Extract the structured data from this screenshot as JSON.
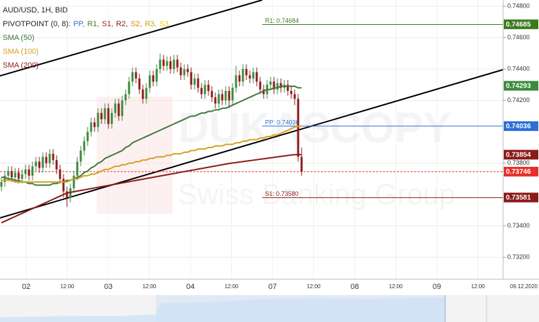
{
  "chart_data": {
    "type": "candlestick",
    "title": "AUD/USD, 1H, BID",
    "pivot_legend": {
      "name": "PIVOTPOINT (0, 8):",
      "items": [
        {
          "text": "PP,",
          "color": "#2a6fd6"
        },
        {
          "text": "R1,",
          "color": "#3c7a1e"
        },
        {
          "text": "S1,",
          "color": "#b22222"
        },
        {
          "text": "R2,",
          "color": "#8b1a1a"
        },
        {
          "text": "S2,",
          "color": "#e08a00"
        },
        {
          "text": "R3,",
          "color": "#c9a400"
        },
        {
          "text": "S3",
          "color": "#e6d200"
        }
      ]
    },
    "watermark": [
      "DUKASCOPY",
      "Swiss Banking Group"
    ],
    "candles": {
      "up_color": "#3c8a3c",
      "down_color": "#8b1a1a",
      "open": [
        0.7365,
        0.7368,
        0.7372,
        0.7375,
        0.7371,
        0.7374,
        0.737,
        0.7373,
        0.7376,
        0.7372,
        0.7378,
        0.7381,
        0.7377,
        0.7384,
        0.738,
        0.7386,
        0.7382,
        0.7376,
        0.737,
        0.7362,
        0.7358,
        0.7364,
        0.7372,
        0.7381,
        0.7388,
        0.7394,
        0.74,
        0.7406,
        0.7403,
        0.7412,
        0.7408,
        0.7415,
        0.7405,
        0.7412,
        0.7418,
        0.741,
        0.742,
        0.7424,
        0.7432,
        0.7438,
        0.7434,
        0.7427,
        0.7421,
        0.7428,
        0.7436,
        0.7432,
        0.744,
        0.7446,
        0.7442,
        0.7445,
        0.744,
        0.7446,
        0.7441,
        0.7436,
        0.744,
        0.7438,
        0.743,
        0.7434,
        0.7428,
        0.7424,
        0.743,
        0.7426,
        0.7422,
        0.7418,
        0.7424,
        0.742,
        0.7426,
        0.742,
        0.7428,
        0.7436,
        0.7432,
        0.744,
        0.7436,
        0.7434,
        0.7438,
        0.7432,
        0.7427,
        0.7424,
        0.743,
        0.7432,
        0.7427,
        0.7431,
        0.7428,
        0.743,
        0.7426,
        0.7424,
        0.7421,
        0.7384
      ],
      "high": [
        0.7371,
        0.7375,
        0.7378,
        0.7378,
        0.7377,
        0.7377,
        0.7376,
        0.7379,
        0.7379,
        0.7381,
        0.7384,
        0.7384,
        0.7387,
        0.7387,
        0.7389,
        0.7389,
        0.7385,
        0.7379,
        0.7373,
        0.7365,
        0.7367,
        0.7375,
        0.7384,
        0.7391,
        0.7397,
        0.7403,
        0.7409,
        0.7409,
        0.7415,
        0.7415,
        0.7418,
        0.7418,
        0.7415,
        0.7421,
        0.7421,
        0.7423,
        0.7427,
        0.7435,
        0.7441,
        0.7441,
        0.7437,
        0.743,
        0.7431,
        0.7439,
        0.7439,
        0.7443,
        0.745,
        0.7449,
        0.7448,
        0.7448,
        0.7449,
        0.7449,
        0.7444,
        0.7443,
        0.7443,
        0.7441,
        0.7437,
        0.7437,
        0.7431,
        0.7433,
        0.7433,
        0.7429,
        0.7425,
        0.7427,
        0.7427,
        0.7429,
        0.7429,
        0.7431,
        0.7442,
        0.7439,
        0.7443,
        0.7443,
        0.7439,
        0.7441,
        0.7441,
        0.7435,
        0.743,
        0.7433,
        0.7435,
        0.7435,
        0.7434,
        0.7434,
        0.7433,
        0.7433,
        0.7429,
        0.7427,
        0.7424,
        0.739
      ],
      "low": [
        0.7362,
        0.7365,
        0.7369,
        0.7368,
        0.7368,
        0.7367,
        0.7367,
        0.737,
        0.7369,
        0.7369,
        0.7375,
        0.7374,
        0.7374,
        0.7377,
        0.7377,
        0.7379,
        0.7373,
        0.7367,
        0.7358,
        0.7352,
        0.7355,
        0.7361,
        0.7369,
        0.7378,
        0.7385,
        0.7391,
        0.7397,
        0.74,
        0.74,
        0.7405,
        0.7405,
        0.7402,
        0.7402,
        0.7409,
        0.7407,
        0.7407,
        0.7417,
        0.7421,
        0.7429,
        0.7431,
        0.7424,
        0.7418,
        0.7418,
        0.7425,
        0.7429,
        0.7429,
        0.7437,
        0.7439,
        0.7439,
        0.7437,
        0.7437,
        0.7438,
        0.7433,
        0.7433,
        0.7435,
        0.7427,
        0.7427,
        0.7425,
        0.7421,
        0.7421,
        0.7423,
        0.7419,
        0.7415,
        0.7415,
        0.7417,
        0.7417,
        0.7415,
        0.7417,
        0.7425,
        0.7429,
        0.7429,
        0.7433,
        0.7431,
        0.7431,
        0.7429,
        0.7424,
        0.7421,
        0.7421,
        0.7427,
        0.7424,
        0.7424,
        0.7425,
        0.7425,
        0.7423,
        0.7421,
        0.7417,
        0.7381,
        0.7372
      ],
      "close": [
        0.7368,
        0.7372,
        0.7375,
        0.7371,
        0.7374,
        0.737,
        0.7373,
        0.7376,
        0.7372,
        0.7378,
        0.7381,
        0.7377,
        0.7384,
        0.738,
        0.7386,
        0.7382,
        0.7376,
        0.737,
        0.7362,
        0.7358,
        0.7364,
        0.7372,
        0.7381,
        0.7388,
        0.7394,
        0.74,
        0.7406,
        0.7403,
        0.7412,
        0.7408,
        0.7415,
        0.7405,
        0.7412,
        0.7418,
        0.741,
        0.742,
        0.7424,
        0.7432,
        0.7438,
        0.7434,
        0.7427,
        0.7421,
        0.7428,
        0.7436,
        0.7432,
        0.744,
        0.7446,
        0.7442,
        0.7445,
        0.744,
        0.7446,
        0.7441,
        0.7436,
        0.744,
        0.7438,
        0.743,
        0.7434,
        0.7428,
        0.7424,
        0.743,
        0.7426,
        0.7422,
        0.7418,
        0.7424,
        0.742,
        0.7426,
        0.742,
        0.7428,
        0.7436,
        0.7432,
        0.744,
        0.7436,
        0.7434,
        0.7438,
        0.7432,
        0.7427,
        0.7424,
        0.743,
        0.7432,
        0.7427,
        0.7431,
        0.7428,
        0.743,
        0.7426,
        0.7424,
        0.7421,
        0.7384,
        0.73746
      ]
    },
    "series": [
      {
        "name": "SMA (50)",
        "color": "#3c7a3c",
        "values": [
          0.7371,
          0.7371,
          0.737,
          0.737,
          0.7369,
          0.7369,
          0.7368,
          0.7368,
          0.7367,
          0.7367,
          0.7366,
          0.7366,
          0.7366,
          0.7366,
          0.7366,
          0.7367,
          0.7367,
          0.7368,
          0.7368,
          0.7369,
          0.7369,
          0.737,
          0.7371,
          0.7372,
          0.7374,
          0.7375,
          0.7377,
          0.7378,
          0.738,
          0.7381,
          0.7383,
          0.7384,
          0.7385,
          0.7386,
          0.7387,
          0.7388,
          0.739,
          0.7391,
          0.7393,
          0.7394,
          0.7395,
          0.7396,
          0.7397,
          0.7398,
          0.7399,
          0.74,
          0.7401,
          0.7402,
          0.7403,
          0.7404,
          0.7405,
          0.7406,
          0.7407,
          0.7408,
          0.7409,
          0.741,
          0.741,
          0.7411,
          0.7412,
          0.7412,
          0.7413,
          0.7413,
          0.7414,
          0.7414,
          0.7415,
          0.7415,
          0.7416,
          0.7417,
          0.7418,
          0.7419,
          0.742,
          0.7421,
          0.7422,
          0.7423,
          0.7424,
          0.7425,
          0.7426,
          0.7427,
          0.7427,
          0.7428,
          0.7428,
          0.7429,
          0.7429,
          0.7429,
          0.7429,
          0.7429,
          0.7428,
          0.7428
        ]
      },
      {
        "name": "SMA (100)",
        "color": "#d4a020",
        "values": [
          0.7369,
          0.7369,
          0.7369,
          0.7369,
          0.7368,
          0.7368,
          0.7368,
          0.7368,
          0.7368,
          0.7368,
          0.7368,
          0.7368,
          0.7368,
          0.7368,
          0.7368,
          0.7368,
          0.7368,
          0.7368,
          0.7368,
          0.7368,
          0.7369,
          0.737,
          0.737,
          0.7371,
          0.7372,
          0.7372,
          0.7373,
          0.7373,
          0.7374,
          0.7375,
          0.7376,
          0.7376,
          0.7377,
          0.7378,
          0.7378,
          0.7379,
          0.7379,
          0.738,
          0.738,
          0.7381,
          0.7381,
          0.7382,
          0.7382,
          0.7383,
          0.7383,
          0.7384,
          0.7384,
          0.7384,
          0.7385,
          0.7385,
          0.7386,
          0.7386,
          0.7386,
          0.7387,
          0.7387,
          0.7388,
          0.7388,
          0.7389,
          0.7389,
          0.7389,
          0.739,
          0.739,
          0.7391,
          0.7391,
          0.7391,
          0.7392,
          0.7392,
          0.7392,
          0.7393,
          0.7393,
          0.7394,
          0.7394,
          0.7395,
          0.7395,
          0.7395,
          0.7396,
          0.7396,
          0.7397,
          0.7397,
          0.7398,
          0.7398,
          0.7399,
          0.74,
          0.7401,
          0.7402,
          0.7403,
          0.74034,
          0.74036
        ]
      },
      {
        "name": "SMA (200)",
        "color": "#8b1a1a",
        "values": [
          0.7342,
          0.7343,
          0.7344,
          0.7345,
          0.7346,
          0.7347,
          0.7348,
          0.7349,
          0.735,
          0.7351,
          0.7352,
          0.7353,
          0.7354,
          0.7355,
          0.7356,
          0.7357,
          0.7358,
          0.7359,
          0.736,
          0.7361,
          0.73614,
          0.73618,
          0.73622,
          0.73626,
          0.7363,
          0.73634,
          0.73638,
          0.73642,
          0.73646,
          0.7365,
          0.73654,
          0.73658,
          0.73662,
          0.73666,
          0.7367,
          0.73674,
          0.73678,
          0.73682,
          0.73686,
          0.7369,
          0.73694,
          0.73698,
          0.73702,
          0.73706,
          0.7371,
          0.73714,
          0.73718,
          0.73722,
          0.73726,
          0.7373,
          0.73734,
          0.73738,
          0.73742,
          0.73746,
          0.7375,
          0.73754,
          0.73758,
          0.73762,
          0.73766,
          0.7377,
          0.73774,
          0.73778,
          0.73782,
          0.73786,
          0.7379,
          0.73794,
          0.73798,
          0.73801,
          0.73804,
          0.73807,
          0.7381,
          0.73813,
          0.73816,
          0.73819,
          0.73822,
          0.73825,
          0.73828,
          0.73831,
          0.73834,
          0.73837,
          0.7384,
          0.73843,
          0.73846,
          0.73849,
          0.73852,
          0.73854,
          0.73855,
          0.73854
        ]
      }
    ],
    "pivots": [
      {
        "label": "R1: 0.74684",
        "value": 0.74684,
        "color": "#3c7a1e"
      },
      {
        "label": "PP: 0.74036",
        "value": 0.74036,
        "color": "#2a6fd6"
      },
      {
        "label": "S1: 0.73580",
        "value": 0.7358,
        "color": "#8b1a1a"
      }
    ],
    "price_tags": [
      {
        "value": 0.74685,
        "color": "#3c7a1e"
      },
      {
        "value": 0.74293,
        "color": "#3c8a3c"
      },
      {
        "value": 0.74036,
        "color": "#2a6fd6"
      },
      {
        "value": 0.73854,
        "color": "#8b1a1a"
      },
      {
        "value": 0.73581,
        "color": "#8b1a1a"
      }
    ],
    "last_price": {
      "value": 0.73746,
      "color": "#e8302a"
    },
    "ylim": [
      0.7306,
      0.7484
    ],
    "yticks": [
      {
        "value": 0.748,
        "label": "0.74800"
      },
      {
        "value": 0.746,
        "label": "0.74600"
      },
      {
        "value": 0.744,
        "label": "0.74400"
      },
      {
        "value": 0.742,
        "label": "0.74200"
      },
      {
        "value": 0.738,
        "label": "0.73800"
      },
      {
        "value": 0.734,
        "label": "0.73400"
      },
      {
        "value": 0.732,
        "label": "0.73200"
      }
    ],
    "x_labels": [
      "02",
      "12:00",
      "03",
      "12:00",
      "04",
      "12:00",
      "07",
      "12:00",
      "08",
      "12:00",
      "09",
      "12:00"
    ],
    "date_label": "09.12.2020",
    "grid": true
  }
}
